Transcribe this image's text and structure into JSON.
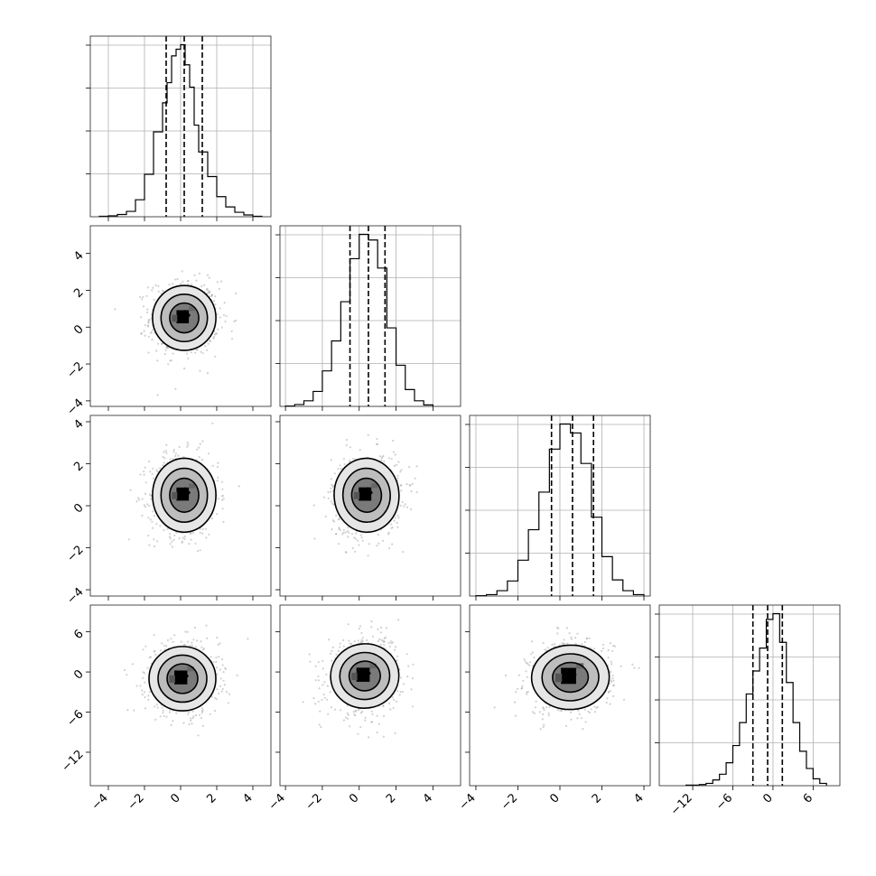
{
  "chart_data": {
    "type": "corner",
    "parameters": 4,
    "title": "",
    "grid": true,
    "quantile_lines": "dashed",
    "contour_levels": [
      "outer",
      "middle",
      "inner"
    ],
    "contour_fill_colors": [
      "#e6e6e6",
      "#bdbdbd",
      "#7a7a7a",
      "#000000"
    ],
    "axes": [
      {
        "index": 0,
        "range": [
          -5,
          5
        ],
        "ticks": [
          -4,
          -2,
          0,
          2,
          4
        ],
        "tick_labels": [
          "−4",
          "−2",
          "0",
          "2",
          "4"
        ]
      },
      {
        "index": 1,
        "range": [
          -4.3,
          5.5
        ],
        "ticks": [
          -4,
          -2,
          0,
          2,
          4
        ],
        "tick_labels": [
          "−4",
          "−2",
          "0",
          "2",
          "4"
        ]
      },
      {
        "index": 2,
        "range": [
          -4.3,
          4.3
        ],
        "ticks": [
          -4,
          -2,
          0,
          2,
          4
        ],
        "tick_labels": [
          "−4",
          "−2",
          "0",
          "2",
          "4"
        ]
      },
      {
        "index": 3,
        "range": [
          -17,
          10
        ],
        "ticks": [
          -12,
          -6,
          0,
          6
        ],
        "tick_labels": [
          "−12",
          "−6",
          "0",
          "6"
        ]
      }
    ],
    "histograms": [
      {
        "param": 0,
        "quantiles": [
          -0.8,
          0.2,
          1.2
        ],
        "edges": [
          -4.5,
          -4.0,
          -3.5,
          -3.0,
          -2.5,
          -2.0,
          -1.5,
          -1.0,
          -0.75,
          -0.5,
          -0.25,
          0.0,
          0.25,
          0.5,
          0.75,
          1.0,
          1.5,
          2.0,
          2.5,
          3.0,
          3.5,
          4.0,
          4.5
        ],
        "counts": [
          1,
          2,
          5,
          12,
          38,
          95,
          190,
          255,
          300,
          360,
          375,
          385,
          340,
          290,
          205,
          145,
          90,
          45,
          22,
          10,
          4,
          1
        ]
      },
      {
        "param": 1,
        "quantiles": [
          -0.5,
          0.5,
          1.4
        ],
        "edges": [
          -4.0,
          -3.5,
          -3.0,
          -2.5,
          -2.0,
          -1.5,
          -1.0,
          -0.5,
          0.0,
          0.5,
          1.0,
          1.5,
          2.0,
          2.5,
          3.0,
          3.5,
          4.0
        ],
        "counts": [
          1,
          5,
          15,
          40,
          95,
          175,
          280,
          395,
          460,
          445,
          370,
          210,
          110,
          45,
          15,
          4
        ]
      },
      {
        "param": 2,
        "quantiles": [
          -0.4,
          0.6,
          1.6
        ],
        "edges": [
          -4.0,
          -3.5,
          -3.0,
          -2.5,
          -2.0,
          -1.5,
          -1.0,
          -0.5,
          0.0,
          0.5,
          1.0,
          1.5,
          2.0,
          2.5,
          3.0,
          3.5,
          4.0
        ],
        "counts": [
          1,
          4,
          15,
          42,
          100,
          185,
          290,
          410,
          480,
          455,
          370,
          220,
          110,
          45,
          15,
          4
        ]
      },
      {
        "param": 3,
        "quantiles": [
          -3.0,
          -0.8,
          1.4
        ],
        "edges": [
          -13,
          -12,
          -11,
          -10,
          -9,
          -8,
          -7,
          -6,
          -5,
          -4,
          -3,
          -2,
          -1,
          0,
          1,
          2,
          3,
          4,
          5,
          6,
          7,
          8
        ],
        "counts": [
          1,
          1,
          2,
          4,
          10,
          20,
          40,
          70,
          110,
          160,
          200,
          240,
          290,
          300,
          250,
          180,
          110,
          60,
          30,
          12,
          4
        ]
      }
    ],
    "pairs": [
      {
        "x": 0,
        "y": 1,
        "center": [
          0.2,
          0.5
        ],
        "spread": [
          0.95,
          0.95
        ],
        "rho": 0.0
      },
      {
        "x": 0,
        "y": 2,
        "center": [
          0.2,
          0.5
        ],
        "spread": [
          0.95,
          0.95
        ],
        "rho": 0.0
      },
      {
        "x": 1,
        "y": 2,
        "center": [
          0.4,
          0.5
        ],
        "spread": [
          0.95,
          0.95
        ],
        "rho": 0.08
      },
      {
        "x": 0,
        "y": 3,
        "center": [
          0.1,
          -1.0
        ],
        "spread": [
          1.0,
          2.6
        ],
        "rho": 0.0
      },
      {
        "x": 1,
        "y": 3,
        "center": [
          0.3,
          -0.6
        ],
        "spread": [
          1.0,
          2.6
        ],
        "rho": 0.15
      },
      {
        "x": 2,
        "y": 3,
        "center": [
          0.5,
          -0.8
        ],
        "spread": [
          1.0,
          2.6
        ],
        "rho": 0.05
      }
    ],
    "colors": {
      "line": "#000000",
      "points": "#9a9a9a",
      "grid": "#b0b0b0"
    }
  }
}
